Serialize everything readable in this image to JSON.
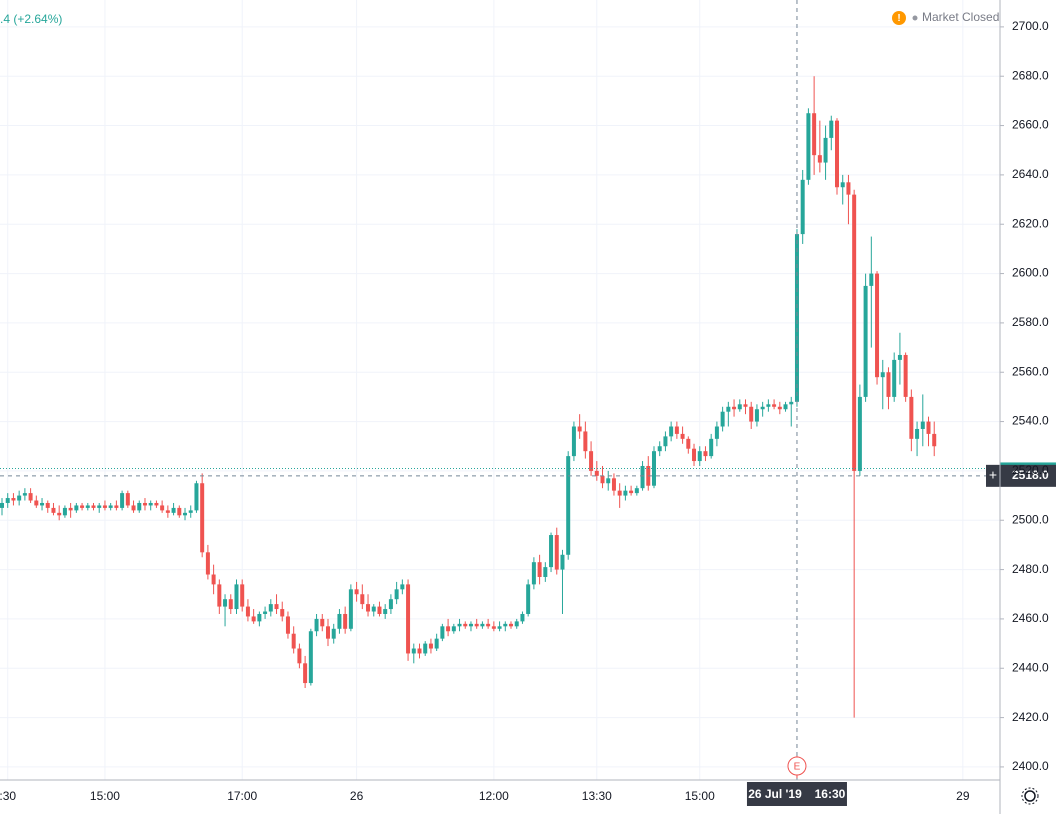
{
  "chart_data": {
    "type": "candlestick",
    "header_change": ".4 (+2.64%)",
    "status": "Market Closed",
    "earnings_marker": "E",
    "up_color": "#26a69a",
    "down_color": "#ef5350",
    "grid": true,
    "ylim": [
      2394.7,
      2710.9
    ],
    "yticks": [
      {
        "value": 2400,
        "label": "2400.0"
      },
      {
        "value": 2420,
        "label": "2420.0"
      },
      {
        "value": 2440,
        "label": "2440.0"
      },
      {
        "value": 2460,
        "label": "2460.0"
      },
      {
        "value": 2480,
        "label": "2480.0"
      },
      {
        "value": 2500,
        "label": "2500.0"
      },
      {
        "value": 2520,
        "label": "2520.0"
      },
      {
        "value": 2540,
        "label": "2540.0"
      },
      {
        "value": 2560,
        "label": "2560.0"
      },
      {
        "value": 2580,
        "label": "2580.0"
      },
      {
        "value": 2600,
        "label": "2600.0"
      },
      {
        "value": 2620,
        "label": "2620.0"
      },
      {
        "value": 2640,
        "label": "2640.0"
      },
      {
        "value": 2660,
        "label": "2660.0"
      },
      {
        "value": 2680,
        "label": "2680.0"
      },
      {
        "value": 2700,
        "label": "2700.0"
      }
    ],
    "xlim": [
      -0.35,
      174.5
    ],
    "xticks": [
      {
        "value": 1,
        "label": ":30"
      },
      {
        "value": 18,
        "label": "15:00"
      },
      {
        "value": 42,
        "label": "17:00"
      },
      {
        "value": 62,
        "label": "26"
      },
      {
        "value": 86,
        "label": "12:00"
      },
      {
        "value": 104,
        "label": "13:30"
      },
      {
        "value": 122,
        "label": "15:00"
      },
      {
        "value": 168,
        "label": "29"
      }
    ],
    "reference_line": 2521,
    "crosshair": {
      "index": 139,
      "price": {
        "value": 2518,
        "label": "2518.0"
      },
      "date": "26 Jul '19",
      "time": "16:30"
    },
    "ohlc": [
      [
        2505,
        2509,
        2502,
        2507
      ],
      [
        2507,
        2511,
        2505,
        2509
      ],
      [
        2509,
        2511,
        2506,
        2508
      ],
      [
        2508,
        2512,
        2506,
        2510
      ],
      [
        2510,
        2513,
        2508,
        2511
      ],
      [
        2511,
        2513,
        2507,
        2508
      ],
      [
        2508,
        2510,
        2505,
        2506
      ],
      [
        2506,
        2509,
        2504,
        2507
      ],
      [
        2507,
        2508,
        2503,
        2505
      ],
      [
        2505,
        2507,
        2502,
        2503
      ],
      [
        2503,
        2506,
        2500,
        2502
      ],
      [
        2502,
        2506,
        2501,
        2505
      ],
      [
        2505,
        2507,
        2501,
        2504
      ],
      [
        2504,
        2507,
        2503,
        2506
      ],
      [
        2506,
        2507,
        2504,
        2505
      ],
      [
        2505,
        2507,
        2504,
        2506
      ],
      [
        2506,
        2507,
        2504,
        2505
      ],
      [
        2505,
        2507,
        2503,
        2506
      ],
      [
        2506,
        2508,
        2504,
        2505
      ],
      [
        2505,
        2507,
        2504,
        2506
      ],
      [
        2506,
        2508,
        2504,
        2505
      ],
      [
        2505,
        2512,
        2504,
        2511
      ],
      [
        2511,
        2512,
        2505,
        2506
      ],
      [
        2506,
        2508,
        2503,
        2504
      ],
      [
        2504,
        2508,
        2503,
        2507
      ],
      [
        2507,
        2509,
        2504,
        2506
      ],
      [
        2506,
        2508,
        2504,
        2507
      ],
      [
        2507,
        2508,
        2505,
        2506
      ],
      [
        2506,
        2508,
        2503,
        2504
      ],
      [
        2504,
        2506,
        2501,
        2503
      ],
      [
        2503,
        2507,
        2502,
        2505
      ],
      [
        2505,
        2506,
        2501,
        2502
      ],
      [
        2502,
        2505,
        2500,
        2503
      ],
      [
        2503,
        2506,
        2501,
        2504
      ],
      [
        2504,
        2516,
        2503,
        2515
      ],
      [
        2515,
        2519,
        2485,
        2487
      ],
      [
        2487,
        2490,
        2476,
        2478
      ],
      [
        2478,
        2482,
        2470,
        2474
      ],
      [
        2474,
        2476,
        2462,
        2465
      ],
      [
        2465,
        2470,
        2457,
        2468
      ],
      [
        2468,
        2470,
        2462,
        2464
      ],
      [
        2464,
        2476,
        2462,
        2474
      ],
      [
        2474,
        2476,
        2463,
        2465
      ],
      [
        2465,
        2468,
        2459,
        2461
      ],
      [
        2461,
        2464,
        2458,
        2459
      ],
      [
        2459,
        2463,
        2457,
        2462
      ],
      [
        2462,
        2465,
        2460,
        2463
      ],
      [
        2463,
        2468,
        2461,
        2466
      ],
      [
        2466,
        2470,
        2462,
        2464
      ],
      [
        2464,
        2467,
        2459,
        2461
      ],
      [
        2461,
        2463,
        2452,
        2454
      ],
      [
        2454,
        2457,
        2446,
        2448
      ],
      [
        2448,
        2450,
        2440,
        2442
      ],
      [
        2442,
        2445,
        2432,
        2434
      ],
      [
        2434,
        2456,
        2433,
        2455
      ],
      [
        2455,
        2462,
        2453,
        2460
      ],
      [
        2460,
        2462,
        2455,
        2457
      ],
      [
        2457,
        2460,
        2449,
        2452
      ],
      [
        2452,
        2458,
        2450,
        2456
      ],
      [
        2456,
        2464,
        2454,
        2462
      ],
      [
        2462,
        2465,
        2454,
        2456
      ],
      [
        2456,
        2474,
        2455,
        2472
      ],
      [
        2472,
        2475,
        2467,
        2470
      ],
      [
        2470,
        2474,
        2464,
        2466
      ],
      [
        2466,
        2470,
        2461,
        2463
      ],
      [
        2463,
        2466,
        2461,
        2465
      ],
      [
        2465,
        2467,
        2461,
        2462
      ],
      [
        2462,
        2466,
        2460,
        2464
      ],
      [
        2464,
        2470,
        2462,
        2468
      ],
      [
        2468,
        2475,
        2466,
        2472
      ],
      [
        2472,
        2476,
        2470,
        2474
      ],
      [
        2474,
        2476,
        2443,
        2446
      ],
      [
        2446,
        2450,
        2442,
        2448
      ],
      [
        2448,
        2450,
        2444,
        2446
      ],
      [
        2446,
        2451,
        2445,
        2450
      ],
      [
        2450,
        2452,
        2446,
        2448
      ],
      [
        2448,
        2454,
        2447,
        2452
      ],
      [
        2452,
        2458,
        2451,
        2457
      ],
      [
        2457,
        2460,
        2453,
        2455
      ],
      [
        2455,
        2458,
        2454,
        2457
      ],
      [
        2457,
        2460,
        2455,
        2458
      ],
      [
        2458,
        2459,
        2456,
        2457
      ],
      [
        2457,
        2459,
        2455,
        2458
      ],
      [
        2458,
        2460,
        2456,
        2457
      ],
      [
        2457,
        2459,
        2456,
        2458
      ],
      [
        2458,
        2460,
        2456,
        2457
      ],
      [
        2457,
        2459,
        2455,
        2456
      ],
      [
        2456,
        2459,
        2455,
        2457
      ],
      [
        2457,
        2459,
        2455,
        2458
      ],
      [
        2458,
        2459,
        2456,
        2457
      ],
      [
        2457,
        2460,
        2456,
        2459
      ],
      [
        2459,
        2463,
        2458,
        2462
      ],
      [
        2462,
        2476,
        2461,
        2474
      ],
      [
        2474,
        2485,
        2472,
        2483
      ],
      [
        2483,
        2486,
        2474,
        2477
      ],
      [
        2477,
        2483,
        2475,
        2481
      ],
      [
        2481,
        2495,
        2479,
        2494
      ],
      [
        2494,
        2497,
        2478,
        2480
      ],
      [
        2480,
        2488,
        2462,
        2486
      ],
      [
        2486,
        2528,
        2484,
        2526
      ],
      [
        2526,
        2540,
        2524,
        2538
      ],
      [
        2538,
        2543,
        2533,
        2536
      ],
      [
        2536,
        2540,
        2525,
        2528
      ],
      [
        2528,
        2532,
        2518,
        2520
      ],
      [
        2520,
        2524,
        2516,
        2518
      ],
      [
        2518,
        2522,
        2513,
        2515
      ],
      [
        2515,
        2520,
        2512,
        2517
      ],
      [
        2517,
        2519,
        2510,
        2512
      ],
      [
        2512,
        2515,
        2505,
        2510
      ],
      [
        2510,
        2514,
        2508,
        2512
      ],
      [
        2512,
        2514,
        2510,
        2511
      ],
      [
        2511,
        2514,
        2510,
        2513
      ],
      [
        2513,
        2524,
        2512,
        2522
      ],
      [
        2522,
        2526,
        2512,
        2514
      ],
      [
        2514,
        2530,
        2513,
        2528
      ],
      [
        2528,
        2532,
        2526,
        2530
      ],
      [
        2530,
        2536,
        2528,
        2534
      ],
      [
        2534,
        2540,
        2532,
        2538
      ],
      [
        2538,
        2540,
        2533,
        2535
      ],
      [
        2535,
        2538,
        2531,
        2533
      ],
      [
        2533,
        2534,
        2527,
        2529
      ],
      [
        2529,
        2531,
        2522,
        2524
      ],
      [
        2524,
        2530,
        2522,
        2528
      ],
      [
        2528,
        2530,
        2524,
        2526
      ],
      [
        2526,
        2535,
        2525,
        2533
      ],
      [
        2533,
        2540,
        2530,
        2538
      ],
      [
        2538,
        2546,
        2536,
        2544
      ],
      [
        2544,
        2548,
        2538,
        2546
      ],
      [
        2546,
        2549,
        2542,
        2545
      ],
      [
        2545,
        2549,
        2544,
        2547
      ],
      [
        2547,
        2549,
        2543,
        2546
      ],
      [
        2546,
        2548,
        2537,
        2540
      ],
      [
        2540,
        2547,
        2538,
        2545
      ],
      [
        2545,
        2548,
        2542,
        2546
      ],
      [
        2546,
        2549,
        2544,
        2547
      ],
      [
        2547,
        2549,
        2545,
        2546
      ],
      [
        2546,
        2548,
        2543,
        2545
      ],
      [
        2545,
        2548,
        2544,
        2547
      ],
      [
        2547,
        2550,
        2538,
        2548
      ],
      [
        2548,
        2618,
        2546,
        2616
      ],
      [
        2616,
        2642,
        2612,
        2638
      ],
      [
        2638,
        2667,
        2636,
        2665
      ],
      [
        2665,
        2680,
        2640,
        2648
      ],
      [
        2648,
        2662,
        2641,
        2645
      ],
      [
        2645,
        2660,
        2638,
        2655
      ],
      [
        2655,
        2664,
        2650,
        2662
      ],
      [
        2662,
        2663,
        2632,
        2635
      ],
      [
        2635,
        2640,
        2628,
        2637
      ],
      [
        2637,
        2640,
        2620,
        2632
      ],
      [
        2632,
        2634,
        2420,
        2520
      ],
      [
        2520,
        2555,
        2518,
        2550
      ],
      [
        2550,
        2600,
        2548,
        2595
      ],
      [
        2595,
        2615,
        2570,
        2600
      ],
      [
        2600,
        2601,
        2555,
        2558
      ],
      [
        2558,
        2565,
        2545,
        2560
      ],
      [
        2560,
        2562,
        2545,
        2550
      ],
      [
        2550,
        2568,
        2548,
        2565
      ],
      [
        2565,
        2576,
        2555,
        2567
      ],
      [
        2567,
        2568,
        2548,
        2550
      ],
      [
        2550,
        2553,
        2528,
        2533
      ],
      [
        2533,
        2540,
        2526,
        2537
      ],
      [
        2537,
        2551,
        2530,
        2540
      ],
      [
        2540,
        2542,
        2530,
        2535
      ],
      [
        2535,
        2540,
        2526,
        2530
      ]
    ]
  }
}
